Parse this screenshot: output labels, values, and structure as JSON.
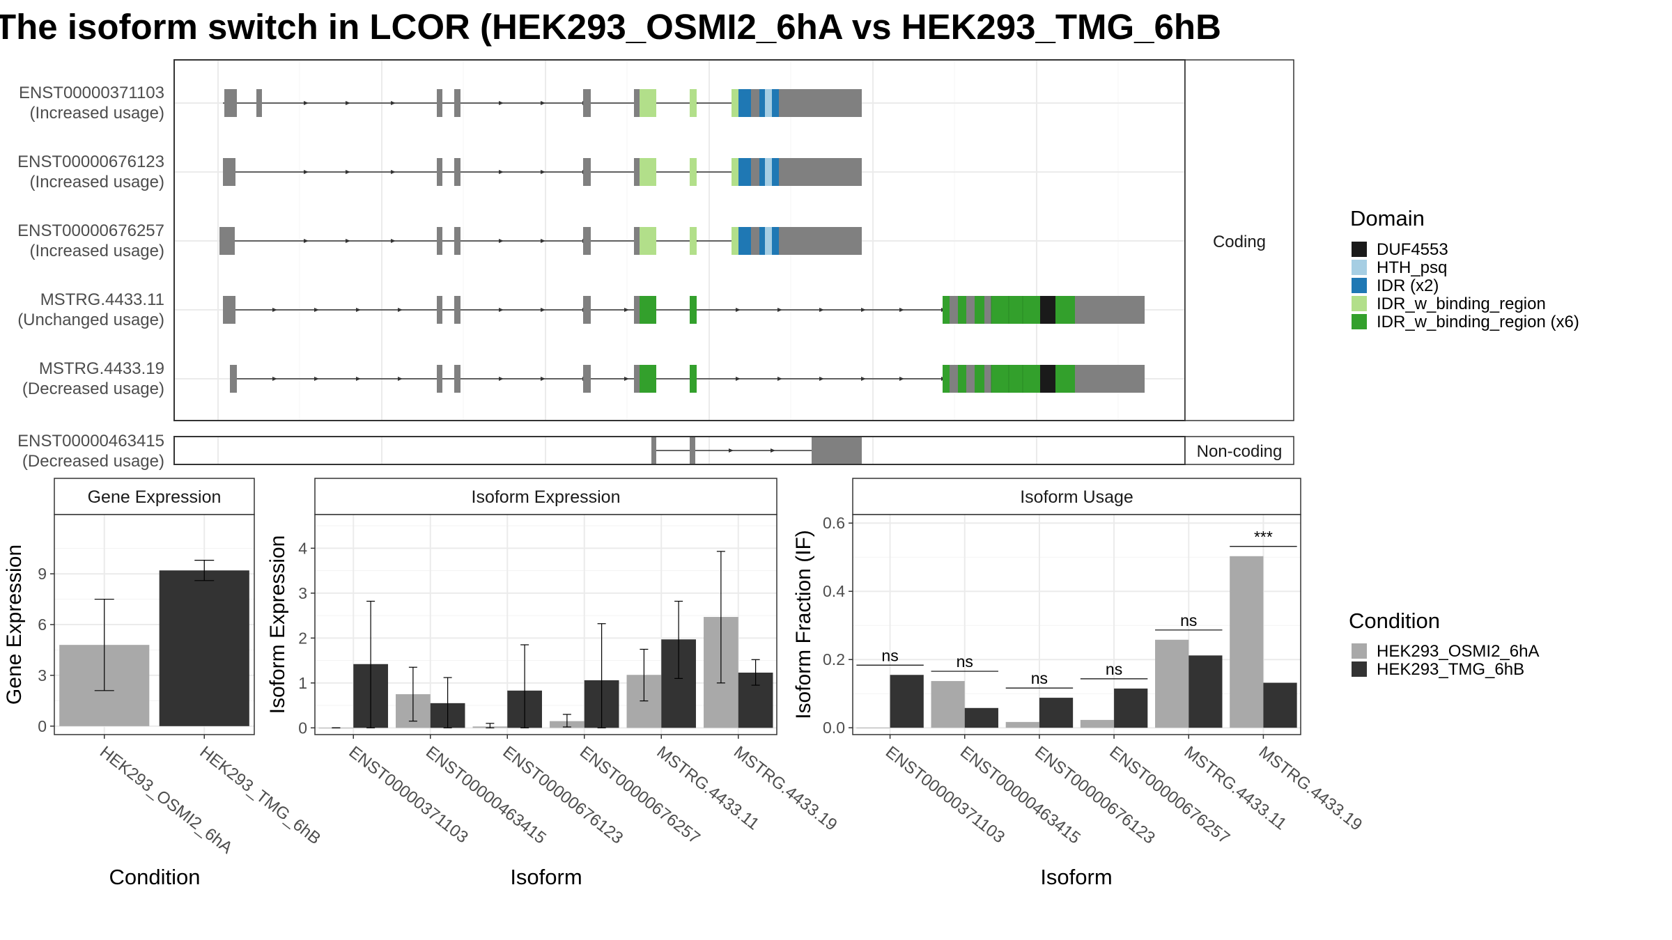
{
  "title": "The isoform switch in LCOR (HEK293_OSMI2_6hA vs HEK293_TMG_6hB",
  "colors": {
    "DUF4553": "#1a1a1a",
    "HTH_psq": "#a6cee3",
    "IDR": "#1f78b4",
    "IDR_w_binding_region_light": "#b2df8a",
    "IDR_w_binding_region": "#33a02c",
    "exon": "#808080",
    "condA": "#a9a9a9",
    "condB": "#333333"
  },
  "structure": {
    "coding_strip": "Coding",
    "noncoding_strip": "Non-coding",
    "coding_isoforms": [
      {
        "id": "ENST00000371103",
        "usage": "(Increased usage)",
        "variant": "short",
        "first_exon": "full"
      },
      {
        "id": "ENST00000676123",
        "usage": "(Increased usage)",
        "variant": "short",
        "first_exon": "thin"
      },
      {
        "id": "ENST00000676257",
        "usage": "(Increased usage)",
        "variant": "short",
        "first_exon": "shifted"
      },
      {
        "id": "MSTRG.4433.11",
        "usage": "(Unchanged usage)",
        "variant": "long",
        "first_exon": "thin"
      },
      {
        "id": "MSTRG.4433.19",
        "usage": "(Decreased usage)",
        "variant": "long",
        "first_exon": "single"
      }
    ],
    "noncoding_isoforms": [
      {
        "id": "ENST00000463415",
        "usage": "(Decreased usage)"
      }
    ]
  },
  "legend_domain": {
    "title": "Domain",
    "items": [
      {
        "label": "DUF4553",
        "color": "#1a1a1a"
      },
      {
        "label": "HTH_psq",
        "color": "#a6cee3"
      },
      {
        "label": "IDR (x2)",
        "color": "#1f78b4"
      },
      {
        "label": "IDR_w_binding_region",
        "color": "#b2df8a"
      },
      {
        "label": "IDR_w_binding_region (x6)",
        "color": "#33a02c"
      }
    ]
  },
  "legend_condition": {
    "title": "Condition",
    "items": [
      {
        "label": "HEK293_OSMI2_6hA",
        "color": "#a9a9a9"
      },
      {
        "label": "HEK293_TMG_6hB",
        "color": "#333333"
      }
    ]
  },
  "chart_data": [
    {
      "type": "bar",
      "title": "Gene Expression",
      "xlabel": "Condition",
      "ylabel": "Gene Expression",
      "categories": [
        "HEK293_OSMI2_6hA",
        "HEK293_TMG_6hB"
      ],
      "values": [
        4.8,
        9.2
      ],
      "error_low": [
        2.1,
        8.6
      ],
      "error_high": [
        7.5,
        9.8
      ],
      "ylim": [
        -0.5,
        12.5
      ],
      "yticks": [
        0,
        3,
        6,
        9
      ],
      "grid": true
    },
    {
      "type": "bar",
      "title": "Isoform Expression",
      "xlabel": "Isoform",
      "ylabel": "Isoform Expression",
      "categories": [
        "ENST00000371103",
        "ENST00000463415",
        "ENST00000676123",
        "ENST00000676257",
        "MSTRG.4433.11",
        "MSTRG.4433.19"
      ],
      "series": [
        {
          "name": "HEK293_OSMI2_6hA",
          "values": [
            0.0,
            0.75,
            0.03,
            0.15,
            1.18,
            2.47
          ],
          "error_low": [
            0.0,
            0.15,
            0.0,
            0.02,
            0.6,
            1.0
          ],
          "error_high": [
            0.0,
            1.35,
            0.1,
            0.3,
            1.75,
            3.93
          ]
        },
        {
          "name": "HEK293_TMG_6hB",
          "values": [
            1.42,
            0.55,
            0.83,
            1.06,
            1.97,
            1.23
          ],
          "error_low": [
            0.0,
            0.0,
            0.0,
            0.0,
            1.1,
            0.95
          ],
          "error_high": [
            2.82,
            1.12,
            1.85,
            2.32,
            2.82,
            1.52
          ]
        }
      ],
      "ylim": [
        -0.15,
        4.75
      ],
      "yticks": [
        0,
        1,
        2,
        3,
        4
      ],
      "grid": true
    },
    {
      "type": "bar",
      "title": "Isoform Usage",
      "xlabel": "Isoform",
      "ylabel": "Isoform Fraction (IF)",
      "categories": [
        "ENST00000371103",
        "ENST00000463415",
        "ENST00000676123",
        "ENST00000676257",
        "MSTRG.4433.11",
        "MSTRG.4433.19"
      ],
      "series": [
        {
          "name": "HEK293_OSMI2_6hA",
          "values": [
            0.0,
            0.137,
            0.017,
            0.023,
            0.258,
            0.503
          ]
        },
        {
          "name": "HEK293_TMG_6hB",
          "values": [
            0.155,
            0.058,
            0.088,
            0.115,
            0.212,
            0.132
          ]
        }
      ],
      "annotations": [
        "ns",
        "ns",
        "ns",
        "ns",
        "ns",
        "***"
      ],
      "ylim": [
        -0.02,
        0.625
      ],
      "yticks": [
        0.0,
        0.2,
        0.4,
        0.6
      ],
      "ytick_labels": [
        "0.0",
        "0.2",
        "0.4",
        "0.6"
      ],
      "grid": true
    }
  ]
}
